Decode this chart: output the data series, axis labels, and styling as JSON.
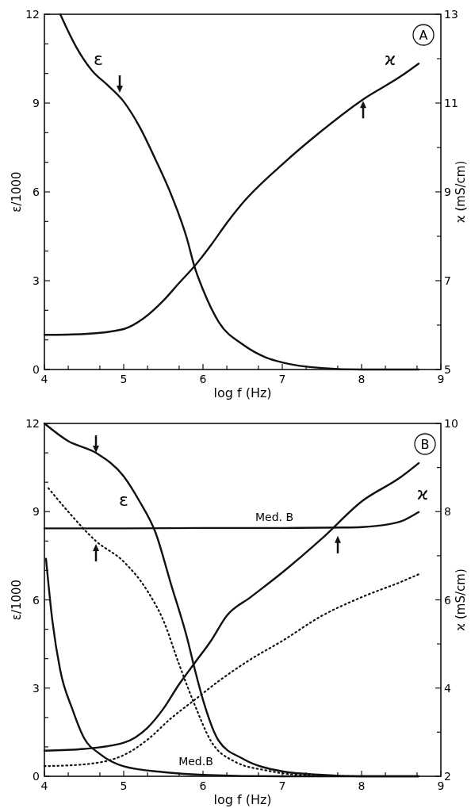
{
  "chart_data": [
    {
      "type": "line",
      "xlabel": "log f (Hz)",
      "ylabel": "ε/1000",
      "y2label": "ϰ (mS/cm)",
      "xlim": [
        4,
        9
      ],
      "xticks": [
        4,
        {
          "value": 4.301,
          "label": null
        },
        {
          "value": 4.699,
          "label": null
        },
        5,
        {
          "value": 5.301,
          "label": null
        },
        {
          "value": 5.699,
          "label": null
        },
        6,
        {
          "value": 6.301,
          "label": null
        },
        {
          "value": 6.699,
          "label": null
        },
        7,
        {
          "value": 7.301,
          "label": null
        },
        {
          "value": 7.699,
          "label": null
        },
        8,
        {
          "value": 8.301,
          "label": null
        },
        {
          "value": 8.699,
          "label": null
        },
        9
      ],
      "ylim": [
        0,
        12
      ],
      "yticks": [
        0,
        {
          "value": 1,
          "label": null
        },
        {
          "value": 2,
          "label": null
        },
        3,
        {
          "value": 4,
          "label": null
        },
        {
          "value": 5,
          "label": null
        },
        6,
        {
          "value": 7,
          "label": null
        },
        {
          "value": 8,
          "label": null
        },
        9,
        {
          "value": 10,
          "label": null
        },
        {
          "value": 11,
          "label": null
        },
        12
      ],
      "y2lim": [
        5,
        13
      ],
      "y2ticks": [
        5,
        {
          "value": 6,
          "label": null
        },
        7,
        {
          "value": 8,
          "label": null
        },
        9,
        {
          "value": 10,
          "label": null
        },
        11,
        {
          "value": 12,
          "label": null
        },
        13
      ],
      "grid": false,
      "series": [
        {
          "color": "#111111",
          "line_style": "solid",
          "x": [
            4.2,
            4.4,
            4.6,
            4.8,
            5.0,
            5.2,
            5.4,
            5.6,
            5.8,
            5.89,
            6.0,
            6.2,
            6.5,
            6.8,
            7.0,
            7.5,
            8.0,
            8.72
          ],
          "values": [
            12,
            10.9,
            10.1,
            9.6,
            9.05,
            8.2,
            7.1,
            5.9,
            4.4,
            3.5,
            2.7,
            1.6,
            0.85,
            0.4,
            0.24,
            0.05,
            0.0,
            0.0
          ]
        },
        {
          "color": "#111111",
          "line_style": "solid",
          "axis": "y2",
          "x": [
            4.0,
            4.5,
            5.0,
            5.25,
            5.5,
            5.7,
            5.89,
            6.1,
            6.3,
            6.5,
            7.0,
            7.5,
            8.0,
            8.5,
            8.72
          ],
          "values": [
            5.78,
            5.8,
            5.91,
            6.15,
            6.55,
            6.95,
            7.32,
            7.8,
            8.3,
            8.75,
            9.62,
            10.38,
            11.06,
            11.61,
            11.89
          ]
        }
      ],
      "annotations": [
        "ε",
        "ϰ",
        "A"
      ]
    },
    {
      "type": "line",
      "xlabel": "log f (Hz)",
      "ylabel": "ε/1000",
      "y2label": "ϰ (mS/cm)",
      "xlim": [
        4,
        9
      ],
      "xticks": [
        4,
        {
          "value": 4.301,
          "label": null
        },
        {
          "value": 4.699,
          "label": null
        },
        5,
        {
          "value": 5.301,
          "label": null
        },
        {
          "value": 5.699,
          "label": null
        },
        6,
        {
          "value": 6.301,
          "label": null
        },
        {
          "value": 6.699,
          "label": null
        },
        7,
        {
          "value": 7.301,
          "label": null
        },
        {
          "value": 7.699,
          "label": null
        },
        8,
        {
          "value": 8.301,
          "label": null
        },
        {
          "value": 8.699,
          "label": null
        },
        9
      ],
      "ylim": [
        0,
        12
      ],
      "yticks": [
        0,
        {
          "value": 1,
          "label": null
        },
        {
          "value": 2,
          "label": null
        },
        3,
        {
          "value": 4,
          "label": null
        },
        {
          "value": 5,
          "label": null
        },
        6,
        {
          "value": 7,
          "label": null
        },
        {
          "value": 8,
          "label": null
        },
        9,
        {
          "value": 10,
          "label": null
        },
        {
          "value": 11,
          "label": null
        },
        12
      ],
      "y2lim": [
        2,
        10
      ],
      "y2ticks": [
        2,
        {
          "value": 3,
          "label": null
        },
        4,
        {
          "value": 5,
          "label": null
        },
        6,
        {
          "value": 7,
          "label": null
        },
        8,
        {
          "value": 9,
          "label": null
        },
        10
      ],
      "grid": false,
      "series": [
        {
          "color": "#111111",
          "line_style": "solid",
          "x": [
            4.0,
            4.3,
            4.65,
            5.0,
            5.2,
            5.4,
            5.6,
            5.8,
            5.9,
            6.0,
            6.2,
            6.5,
            7.0,
            7.5,
            8.0,
            8.72
          ],
          "values": [
            12,
            11.4,
            11.0,
            10.2,
            9.35,
            8.3,
            6.5,
            4.7,
            3.6,
            2.6,
            1.2,
            0.6,
            0.17,
            0.05,
            0.0,
            0.0
          ]
        },
        {
          "color": "#111111",
          "line_style": "dotted",
          "x": [
            4.05,
            4.3,
            4.65,
            5.0,
            5.3,
            5.5,
            5.7,
            5.9,
            6.1,
            6.4,
            6.8,
            7.2,
            8.0,
            8.72
          ],
          "values": [
            9.8,
            9.0,
            8.0,
            7.3,
            6.3,
            5.3,
            3.8,
            2.4,
            1.2,
            0.5,
            0.2,
            0.05,
            0.0,
            0.0
          ]
        },
        {
          "color": "#111111",
          "line_style": "solid",
          "x": [
            4.02,
            4.1,
            4.2,
            4.35,
            4.5,
            4.7,
            5.0,
            5.5,
            6.0,
            7.0,
            8.72
          ],
          "values": [
            7.4,
            5.3,
            3.6,
            2.3,
            1.3,
            0.76,
            0.34,
            0.14,
            0.05,
            0.0,
            0.0
          ]
        },
        {
          "color": "#111111",
          "line_style": "solid",
          "axis": "y2",
          "x": [
            4.0,
            4.5,
            5.0,
            5.3,
            5.5,
            5.7,
            5.9,
            6.1,
            6.3,
            6.6,
            7.0,
            7.5,
            8.0,
            8.5,
            8.72
          ],
          "values": [
            2.58,
            2.62,
            2.76,
            3.1,
            3.53,
            4.09,
            4.58,
            5.07,
            5.64,
            6.06,
            6.62,
            7.39,
            8.23,
            8.79,
            9.1
          ]
        },
        {
          "color": "#111111",
          "line_style": "dotted",
          "axis": "y2",
          "x": [
            4.0,
            4.5,
            5.0,
            5.3,
            5.6,
            5.9,
            6.2,
            6.6,
            7.0,
            7.5,
            8.0,
            8.5,
            8.72
          ],
          "values": [
            2.23,
            2.27,
            2.48,
            2.83,
            3.32,
            3.74,
            4.16,
            4.65,
            5.07,
            5.64,
            6.06,
            6.41,
            6.58
          ]
        },
        {
          "color": "#111111",
          "line_style": "solid",
          "axis": "y2",
          "x": [
            4.0,
            5.0,
            6.0,
            7.0,
            7.8,
            8.0,
            8.3,
            8.5,
            8.72
          ],
          "values": [
            7.62,
            7.62,
            7.63,
            7.63,
            7.64,
            7.65,
            7.7,
            7.78,
            7.99
          ]
        }
      ],
      "annotations": [
        "ε",
        "ϰ",
        "Med. B",
        "Med.B",
        "B"
      ]
    }
  ]
}
